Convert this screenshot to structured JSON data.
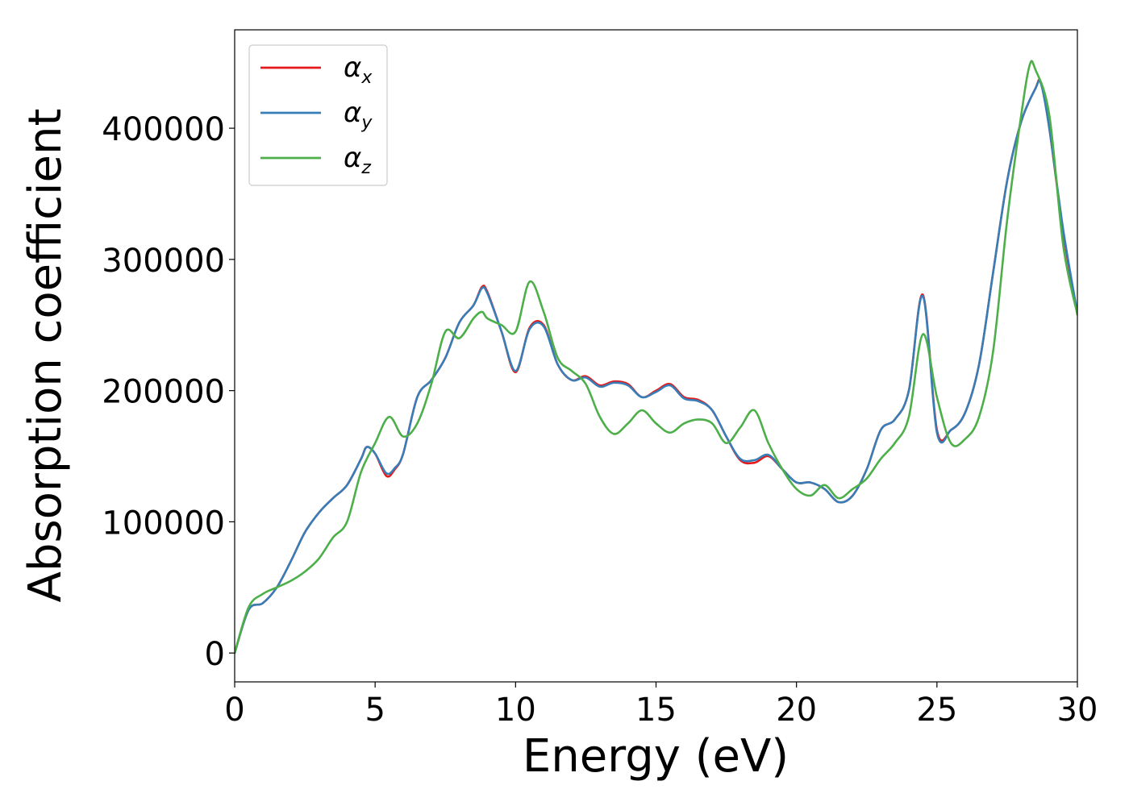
{
  "chart_data": {
    "type": "line",
    "xlabel": "Energy (eV)",
    "ylabel": "Absorption coefficient",
    "xlim": [
      0,
      30
    ],
    "ylim": [
      -22000,
      475000
    ],
    "xticks": [
      0,
      5,
      10,
      15,
      20,
      25,
      30
    ],
    "xtick_labels": [
      "0",
      "5",
      "10",
      "15",
      "20",
      "25",
      "30"
    ],
    "yticks": [
      0,
      100000,
      200000,
      300000,
      400000
    ],
    "ytick_labels": [
      "0",
      "100000",
      "200000",
      "300000",
      "400000"
    ],
    "grid": false,
    "legend_position": "top-left",
    "series": [
      {
        "name": "αx",
        "legend_base": "α",
        "legend_sub": "x",
        "color": "#e41a1c",
        "x": [
          0,
          0.5,
          1,
          1.5,
          2,
          2.5,
          3,
          3.5,
          4,
          4.5,
          4.7,
          5,
          5.4,
          5.7,
          6,
          6.5,
          7,
          7.5,
          8,
          8.5,
          8.8,
          9,
          9.5,
          10,
          10.5,
          11,
          11.5,
          12,
          12.5,
          13,
          13.5,
          14,
          14.5,
          15,
          15.5,
          16,
          16.5,
          17,
          17.5,
          18,
          18.5,
          19,
          19.5,
          20,
          20.5,
          21,
          21.5,
          22,
          22.5,
          23,
          23.5,
          24,
          24.5,
          25,
          25.5,
          26,
          26.5,
          27,
          27.5,
          28,
          28.5,
          28.7,
          29,
          29.5,
          30
        ],
        "y": [
          0,
          33000,
          38000,
          50000,
          70000,
          92000,
          107000,
          118000,
          128000,
          148000,
          157000,
          152000,
          135000,
          140000,
          152000,
          195000,
          208000,
          225000,
          252000,
          265000,
          279000,
          275000,
          245000,
          214000,
          248000,
          250000,
          220000,
          208000,
          211000,
          204000,
          207000,
          205000,
          195000,
          200000,
          205000,
          195000,
          193000,
          185000,
          165000,
          147000,
          145000,
          150000,
          140000,
          130000,
          130000,
          125000,
          115000,
          120000,
          140000,
          170000,
          178000,
          200000,
          273000,
          170000,
          170000,
          183000,
          220000,
          290000,
          360000,
          405000,
          430000,
          435000,
          400000,
          320000,
          258000
        ]
      },
      {
        "name": "αy",
        "legend_base": "α",
        "legend_sub": "y",
        "color": "#377eb8",
        "x": [
          0,
          0.5,
          1,
          1.5,
          2,
          2.5,
          3,
          3.5,
          4,
          4.5,
          4.7,
          5,
          5.4,
          5.7,
          6,
          6.5,
          7,
          7.5,
          8,
          8.5,
          8.8,
          9,
          9.5,
          10,
          10.5,
          11,
          11.5,
          12,
          12.5,
          13,
          13.5,
          14,
          14.5,
          15,
          15.5,
          16,
          16.5,
          17,
          17.5,
          18,
          18.5,
          19,
          19.5,
          20,
          20.5,
          21,
          21.5,
          22,
          22.5,
          23,
          23.5,
          24,
          24.5,
          25,
          25.5,
          26,
          26.5,
          27,
          27.5,
          28,
          28.5,
          28.7,
          29,
          29.5,
          30
        ],
        "y": [
          0,
          33000,
          38000,
          50000,
          70000,
          92000,
          107000,
          118000,
          128000,
          148000,
          157000,
          152000,
          137000,
          141000,
          152000,
          195000,
          208000,
          225000,
          252000,
          265000,
          278000,
          274000,
          245000,
          215000,
          247000,
          249000,
          220000,
          208000,
          210000,
          203000,
          206000,
          204000,
          195000,
          199000,
          204000,
          194000,
          192000,
          185000,
          165000,
          148000,
          147000,
          151000,
          140000,
          130000,
          130000,
          125000,
          115000,
          120000,
          140000,
          170000,
          178000,
          200000,
          272000,
          168000,
          170000,
          183000,
          220000,
          290000,
          360000,
          405000,
          430000,
          434000,
          400000,
          322000,
          259000
        ]
      },
      {
        "name": "αz",
        "legend_base": "α",
        "legend_sub": "z",
        "color": "#4daf4a",
        "x": [
          0,
          0.5,
          1,
          1.5,
          2,
          2.5,
          3,
          3.5,
          4,
          4.5,
          5,
          5.5,
          6,
          6.5,
          7,
          7.5,
          8,
          8.5,
          8.8,
          9,
          9.5,
          10,
          10.5,
          11,
          11.5,
          12,
          12.5,
          13,
          13.5,
          14,
          14.5,
          15,
          15.5,
          16,
          16.5,
          17,
          17.5,
          18,
          18.5,
          19,
          19.5,
          20,
          20.5,
          21,
          21.5,
          22,
          22.5,
          23,
          23.5,
          24,
          24.5,
          25,
          25.5,
          26,
          26.5,
          27,
          27.5,
          28,
          28.3,
          28.5,
          29,
          29.5,
          30
        ],
        "y": [
          0,
          35000,
          45000,
          50000,
          55000,
          62000,
          72000,
          88000,
          100000,
          138000,
          160000,
          180000,
          165000,
          175000,
          205000,
          245000,
          240000,
          255000,
          260000,
          255000,
          250000,
          245000,
          283000,
          260000,
          225000,
          215000,
          205000,
          180000,
          167000,
          175000,
          185000,
          175000,
          168000,
          175000,
          178000,
          175000,
          160000,
          172000,
          185000,
          160000,
          140000,
          125000,
          120000,
          128000,
          118000,
          125000,
          133000,
          148000,
          160000,
          180000,
          243000,
          195000,
          160000,
          163000,
          180000,
          230000,
          330000,
          410000,
          448000,
          445000,
          410000,
          310000,
          258000
        ]
      }
    ]
  }
}
